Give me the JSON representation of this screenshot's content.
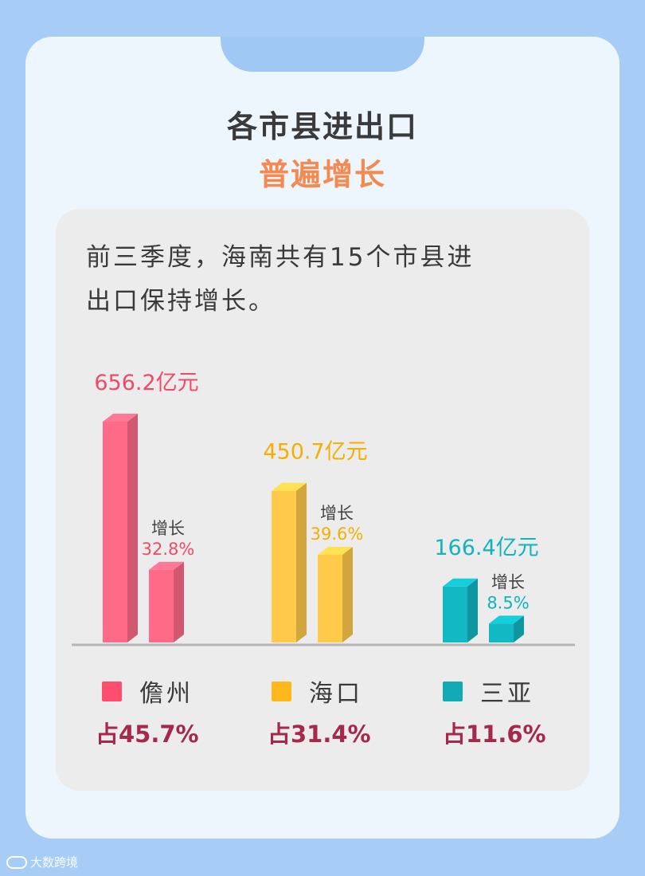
{
  "title": {
    "line1": "各市县进出口",
    "line2": "普遍增长"
  },
  "intro": {
    "line1": "前三季度，海南共有15个市县进",
    "line2": "出口保持增长。"
  },
  "colors": {
    "danzhou": "#ff6b87",
    "haikou": "#ffca4a",
    "sanya": "#12b8c4",
    "share_text": "#a6284b",
    "axis": "#b5b5b5"
  },
  "chart_data": {
    "type": "bar",
    "categories": [
      "儋州",
      "海口",
      "三亚"
    ],
    "series": [
      {
        "values": [
          656.2,
          450.7,
          166.4
        ],
        "labels": [
          "656.2亿元",
          "450.7亿元",
          "166.4亿元"
        ]
      },
      {
        "values": [
          32.8,
          39.6,
          8.5
        ],
        "labels": [
          "32.8%",
          "39.6%",
          "8.5%"
        ],
        "caption": "增长"
      }
    ],
    "shares": [
      "占45.7%",
      "占31.4%",
      "占11.6%"
    ],
    "legend_position": "bottom"
  },
  "watermark": "大数跨境"
}
